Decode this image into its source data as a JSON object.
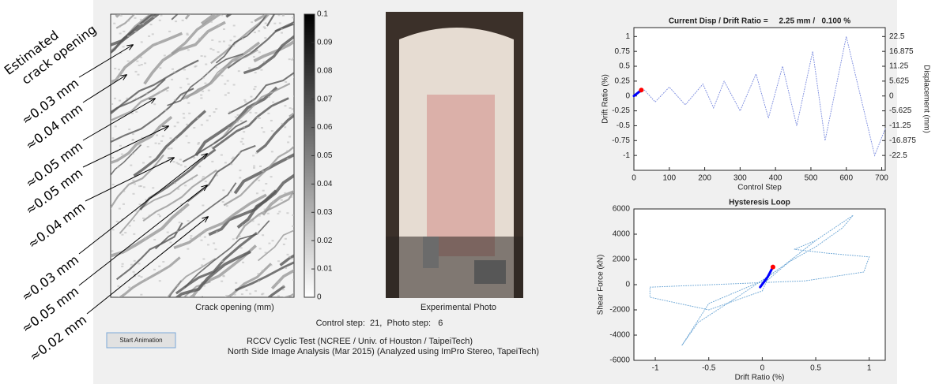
{
  "annotations": {
    "title_lines": [
      "Estimated",
      "crack opening"
    ],
    "labels": [
      "≈0.03 mm",
      "≈0.04 mm",
      "≈0.05 mm",
      "≈0.05 mm",
      "≈0.04 mm",
      "≈0.03 mm",
      "≈0.05 mm",
      "≈0.02 mm"
    ]
  },
  "crack_map": {
    "caption": "Crack opening (mm)",
    "clim": [
      0,
      0.1
    ],
    "colorbar_ticks": [
      0.1,
      0.09,
      0.08,
      0.07,
      0.06,
      0.05,
      0.04,
      0.03,
      0.02,
      0.01,
      0
    ]
  },
  "photo": {
    "caption": "Experimental Photo"
  },
  "status": "Control step:  21,  Photo step:   6",
  "button": "Start Animation",
  "footer": [
    "RCCV Cyclic Test (NCREE / Univ. of Houston / TaipeiTech)",
    "North Side Image Analysis (Mar 2015) (Analyzed using ImPro Stereo, TapeiTech)"
  ],
  "chart_data": [
    {
      "type": "line",
      "title": "Current Disp / Drift Ratio =     2.25 mm /   0.100 %",
      "xlabel": "Control Step",
      "ylabel": "Drift Ratio (%)",
      "y2label": "Displacement (mm)",
      "xlim": [
        0,
        710
      ],
      "xticks": [
        0,
        100,
        200,
        300,
        400,
        500,
        600,
        700
      ],
      "ylim": [
        -1.25,
        1.15
      ],
      "yticks": [
        1,
        0.75,
        0.5,
        0.25,
        0,
        -0.25,
        -0.5,
        -0.75,
        -1
      ],
      "y2lim": [
        -28.125,
        25.875
      ],
      "y2ticks": [
        22.5,
        16.875,
        11.25,
        5.625,
        0,
        -5.625,
        -11.25,
        -16.875,
        -22.5
      ],
      "ycolor": "#d95319",
      "series": [
        {
          "color": "#7f8fe0",
          "dotted": true,
          "x": [
            0,
            30,
            60,
            100,
            145,
            195,
            225,
            255,
            300,
            345,
            380,
            420,
            460,
            505,
            540,
            600,
            680,
            710
          ],
          "values": [
            0,
            0.1,
            -0.1,
            0.15,
            -0.15,
            0.2,
            -0.2,
            0.25,
            -0.25,
            0.37,
            -0.37,
            0.5,
            -0.5,
            0.75,
            -0.75,
            1,
            -1,
            -0.55
          ]
        },
        {
          "color": "#0000ff",
          "width": 3,
          "x": [
            0,
            21
          ],
          "values": [
            0,
            0.1
          ]
        },
        {
          "color": "#ff0000",
          "marker": true,
          "x": [
            21
          ],
          "values": [
            0.1
          ]
        }
      ]
    },
    {
      "type": "line",
      "title": "Hysteresis Loop",
      "xlabel": "Drift Ratio (%)",
      "ylabel": "Shear Force (kN)",
      "xlim": [
        -1.2,
        1.15
      ],
      "xticks": [
        -1,
        -0.5,
        0,
        0.5,
        1
      ],
      "ylim": [
        -6000,
        6000
      ],
      "yticks": [
        6000,
        4000,
        2000,
        0,
        -2000,
        -4000,
        -6000
      ],
      "series": [
        {
          "color": "#6fa8d6",
          "dotted": true,
          "x": [
            0,
            0.25,
            0.5,
            0.75,
            0.85,
            0.5,
            0.2,
            0,
            -0.5,
            -0.75,
            -0.6,
            -0.2,
            0.2,
            0.5,
            0.3,
            0.6,
            1,
            0.95,
            0.4,
            -1.05,
            -1.05,
            -0.5,
            0,
            0.1
          ],
          "values": [
            0,
            1800,
            3000,
            4500,
            5500,
            3500,
            1500,
            300,
            -1500,
            -4800,
            -3000,
            -800,
            1500,
            3500,
            2800,
            2500,
            2200,
            1000,
            300,
            -200,
            -1000,
            -2000,
            -500,
            1400
          ]
        },
        {
          "color": "#0000ff",
          "width": 3,
          "x": [
            -0.02,
            0.05,
            0.1
          ],
          "values": [
            -200,
            600,
            1400
          ]
        },
        {
          "color": "#ff0000",
          "marker": true,
          "x": [
            0.1
          ],
          "values": [
            1400
          ]
        }
      ]
    }
  ]
}
